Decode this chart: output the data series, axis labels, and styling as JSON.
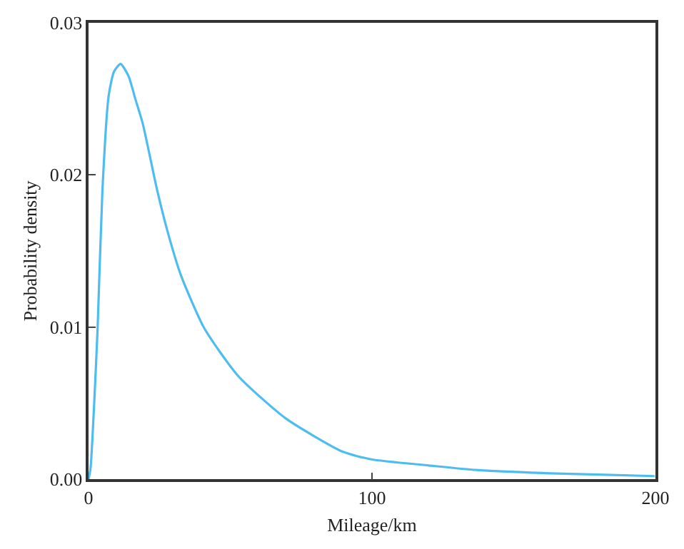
{
  "chart_data": {
    "type": "line",
    "xlabel": "Mileage/km",
    "ylabel": "Probability density",
    "xlim": [
      0,
      200
    ],
    "xticks": [
      0,
      100,
      200
    ],
    "ylim": [
      0,
      0.03
    ],
    "yticks": [
      {
        "value": 0,
        "label": "0.00"
      },
      {
        "value": 0.01,
        "label": "0.01"
      },
      {
        "value": 0.02,
        "label": "0.02"
      },
      {
        "value": 0.03,
        "label": "0.03"
      }
    ],
    "marker": "none",
    "line_style": "solid",
    "series": [
      {
        "color": "#4dbcf0",
        "x": [
          0,
          0.7,
          2,
          3.2,
          4.9,
          7.1,
          9,
          11.3,
          14.1,
          16.5,
          19.1,
          24.2,
          28,
          32.6,
          40.9,
          52.7,
          69.5,
          89.7,
          99.7,
          120,
          136.7,
          160,
          180,
          199.7
        ],
        "values": [
          0,
          0.0007,
          0.005,
          0.0099,
          0.019,
          0.0252,
          0.0268,
          0.0273,
          0.0265,
          0.025,
          0.0234,
          0.019,
          0.0162,
          0.0134,
          0.0099,
          0.0068,
          0.004,
          0.0018,
          0.0013,
          0.0009,
          0.0006,
          0.0004,
          0.0003,
          0.0002
        ]
      }
    ]
  }
}
